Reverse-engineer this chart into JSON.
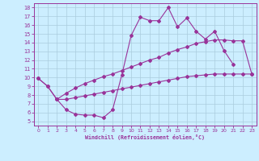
{
  "xlabel": "Windchill (Refroidissement éolien,°C)",
  "line1_x": [
    0,
    1,
    2,
    3,
    4,
    5,
    6,
    7,
    8,
    9,
    10,
    11,
    12,
    13,
    14,
    15,
    16,
    17,
    18,
    19,
    20,
    21
  ],
  "line1_y": [
    9.9,
    9.0,
    7.5,
    6.3,
    5.8,
    5.7,
    5.7,
    5.4,
    6.3,
    10.3,
    14.8,
    16.9,
    16.5,
    16.5,
    18.0,
    15.8,
    16.8,
    15.3,
    14.4,
    15.3,
    13.1,
    11.5
  ],
  "line2_x": [
    0,
    1,
    2,
    3,
    4,
    5,
    6,
    7,
    8,
    9,
    10,
    11,
    12,
    13,
    14,
    15,
    16,
    17,
    18,
    19,
    20,
    21,
    22,
    23
  ],
  "line2_y": [
    9.9,
    9.0,
    7.5,
    8.2,
    8.8,
    9.3,
    9.7,
    10.1,
    10.4,
    10.8,
    11.2,
    11.6,
    12.0,
    12.3,
    12.8,
    13.2,
    13.5,
    13.9,
    14.1,
    14.3,
    14.3,
    14.2,
    14.2,
    10.4
  ],
  "line3_x": [
    2,
    3,
    4,
    5,
    6,
    7,
    8,
    9,
    10,
    11,
    12,
    13,
    14,
    15,
    16,
    17,
    18,
    19,
    20,
    21,
    22,
    23
  ],
  "line3_y": [
    7.5,
    7.5,
    7.7,
    7.9,
    8.1,
    8.3,
    8.5,
    8.7,
    8.9,
    9.1,
    9.3,
    9.5,
    9.7,
    9.9,
    10.1,
    10.2,
    10.3,
    10.4,
    10.4,
    10.4,
    10.4,
    10.4
  ],
  "color": "#993399",
  "bg_color": "#cceeff",
  "plot_bg_color": "#cceeff",
  "grid_color": "#aaccdd",
  "xlim_min": -0.5,
  "xlim_max": 23.5,
  "ylim_min": 4.5,
  "ylim_max": 18.5,
  "xticks": [
    0,
    1,
    2,
    3,
    4,
    5,
    6,
    7,
    8,
    9,
    10,
    11,
    12,
    13,
    14,
    15,
    16,
    17,
    18,
    19,
    20,
    21,
    22,
    23
  ],
  "yticks": [
    5,
    6,
    7,
    8,
    9,
    10,
    11,
    12,
    13,
    14,
    15,
    16,
    17,
    18
  ],
  "markersize": 2.0,
  "linewidth": 0.8
}
